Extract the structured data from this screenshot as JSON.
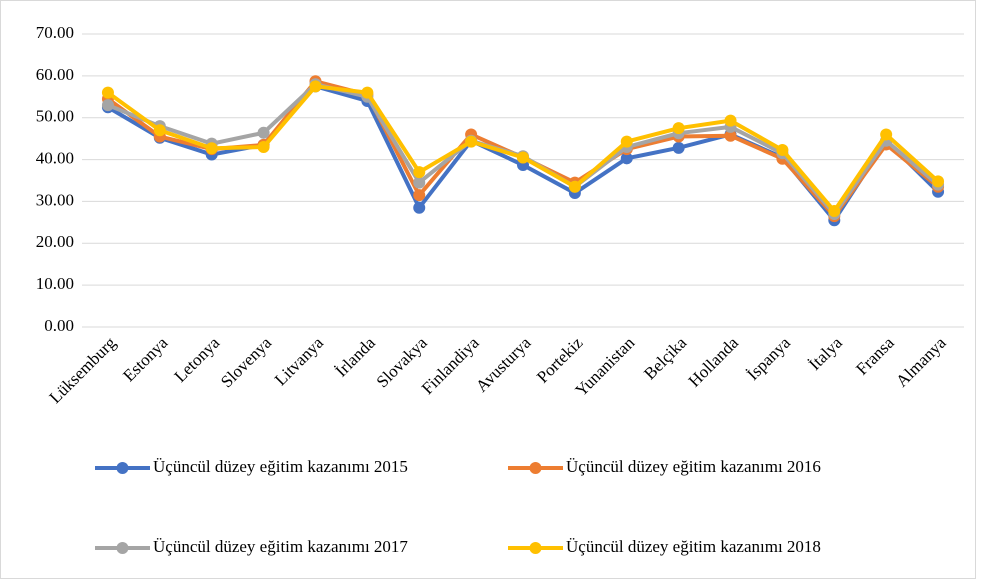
{
  "chart_data": {
    "type": "line",
    "categories": [
      "Lüksemburg",
      "Estonya",
      "Letonya",
      "Slovenya",
      "Litvanya",
      "İrlanda",
      "Slovakya",
      "Finlandiya",
      "Avusturya",
      "Portekiz",
      "Yunanistan",
      "Belçika",
      "Hollanda",
      "İspanya",
      "İtalya",
      "Fransa",
      "Almanya"
    ],
    "series": [
      {
        "name": "Üçüncül düzey eğitim kazanımı 2015",
        "color": "#4472c4",
        "values": [
          52.5,
          45.2,
          41.2,
          43.5,
          57.5,
          54,
          28.5,
          44.5,
          38.7,
          32,
          40.3,
          42.8,
          46,
          40.5,
          25.5,
          44.5,
          32.3
        ]
      },
      {
        "name": "Üçüncül düzey eğitim kazanımı 2016",
        "color": "#ed7d31",
        "values": [
          54.5,
          45.5,
          42.5,
          43.5,
          58.7,
          55.5,
          31.5,
          46,
          40.5,
          34.5,
          42.5,
          45.5,
          45.7,
          40.2,
          26.5,
          43.6,
          33.5
        ]
      },
      {
        "name": "Üçüncül düzey eğitim kazanımı 2017",
        "color": "#a5a5a5",
        "values": [
          53,
          48,
          43.8,
          46.4,
          58,
          55,
          34.5,
          44.5,
          40.8,
          33.5,
          43,
          46.3,
          47.8,
          41.5,
          27,
          44.5,
          34
        ]
      },
      {
        "name": "Üçüncül düzey eğitim kazanımı 2018",
        "color": "#ffc000",
        "values": [
          56,
          47,
          42.7,
          43,
          57.5,
          56,
          37,
          44.3,
          40.5,
          33.5,
          44.3,
          47.5,
          49.3,
          42.3,
          27.7,
          46,
          34.8
        ]
      }
    ],
    "ylim": [
      0,
      70
    ],
    "yticks": [
      {
        "value": 0,
        "label": "0.00"
      },
      {
        "value": 10,
        "label": "10.00"
      },
      {
        "value": 20,
        "label": "20.00"
      },
      {
        "value": 30,
        "label": "30.00"
      },
      {
        "value": 40,
        "label": "40.00"
      },
      {
        "value": 50,
        "label": "50.00"
      },
      {
        "value": 60,
        "label": "60.00"
      },
      {
        "value": 70,
        "label": "70.00"
      }
    ],
    "grid": true
  }
}
